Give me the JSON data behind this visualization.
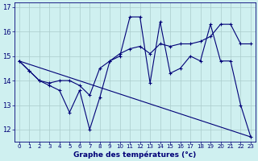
{
  "xlabel": "Graphe des températures (°c)",
  "bg_color": "#cff0f0",
  "grid_color": "#aacccc",
  "line_color": "#000077",
  "xlim": [
    -0.5,
    23.5
  ],
  "ylim": [
    11.5,
    17.2
  ],
  "yticks": [
    12,
    13,
    14,
    15,
    16,
    17
  ],
  "xticks": [
    0,
    1,
    2,
    3,
    4,
    5,
    6,
    7,
    8,
    9,
    10,
    11,
    12,
    13,
    14,
    15,
    16,
    17,
    18,
    19,
    20,
    21,
    22,
    23
  ],
  "curves": [
    {
      "x": [
        0,
        1,
        2,
        3,
        4,
        5,
        6,
        7,
        8,
        9,
        10,
        11,
        12,
        13,
        14,
        15,
        16,
        17,
        18,
        19,
        20,
        21,
        22,
        23
      ],
      "y": [
        14.8,
        14.4,
        14.0,
        13.8,
        13.6,
        12.7,
        13.6,
        12.0,
        13.3,
        14.8,
        15.0,
        16.6,
        16.6,
        13.9,
        16.4,
        14.3,
        14.5,
        15.0,
        14.8,
        16.3,
        14.8,
        14.8,
        13.0,
        11.7
      ]
    },
    {
      "x": [
        0,
        1,
        2,
        3,
        4,
        5,
        6,
        7,
        8,
        9,
        10,
        11,
        12,
        13,
        14,
        15,
        16,
        17,
        18,
        19,
        20,
        21,
        22,
        23
      ],
      "y": [
        14.8,
        14.4,
        14.0,
        13.9,
        14.0,
        14.0,
        13.8,
        13.4,
        14.5,
        14.8,
        15.1,
        15.3,
        15.4,
        15.1,
        15.5,
        15.4,
        15.5,
        15.5,
        15.6,
        15.8,
        16.3,
        16.3,
        15.5,
        15.5
      ]
    },
    {
      "x": [
        0,
        23
      ],
      "y": [
        14.8,
        11.7
      ]
    }
  ]
}
